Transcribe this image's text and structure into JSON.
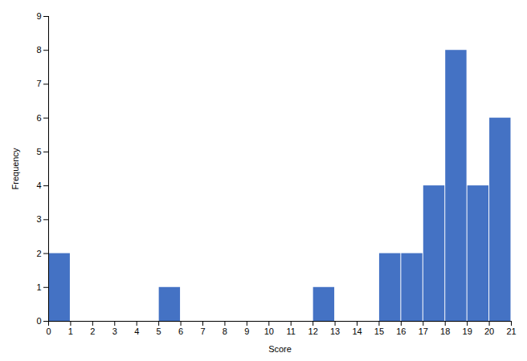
{
  "chart_data": {
    "type": "histogram",
    "xlabel": "Score",
    "ylabel": "Frequency",
    "bins": [
      0,
      1,
      2,
      3,
      4,
      5,
      6,
      7,
      8,
      9,
      10,
      11,
      12,
      13,
      14,
      15,
      16,
      17,
      18,
      19,
      20,
      21
    ],
    "values": [
      2,
      0,
      0,
      0,
      0,
      1,
      0,
      0,
      0,
      0,
      0,
      0,
      1,
      0,
      0,
      2,
      2,
      4,
      8,
      4,
      6
    ],
    "color": "#4472C4",
    "xlim": [
      0,
      21
    ],
    "ylim": [
      0,
      9
    ],
    "xticks": [
      0,
      1,
      2,
      3,
      4,
      5,
      6,
      7,
      8,
      9,
      10,
      11,
      12,
      13,
      14,
      15,
      16,
      17,
      18,
      19,
      20,
      21
    ],
    "yticks": [
      0,
      1,
      2,
      3,
      4,
      5,
      6,
      7,
      8,
      9
    ],
    "grid": false
  }
}
